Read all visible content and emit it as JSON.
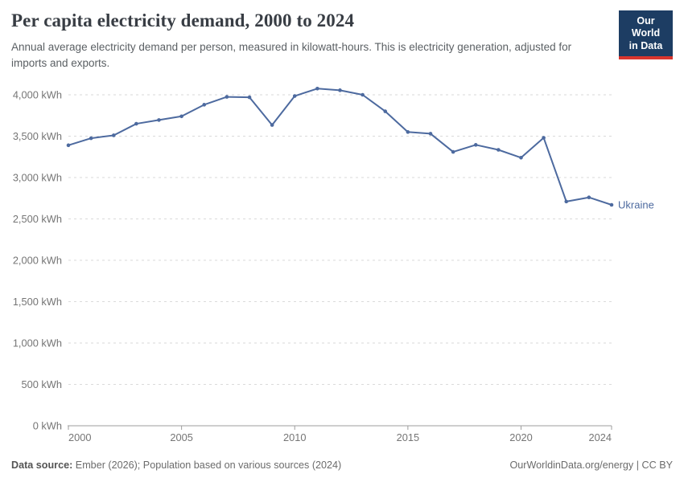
{
  "header": {
    "title": "Per capita electricity demand, 2000 to 2024",
    "subtitle": "Annual average electricity demand per person, measured in kilowatt-hours. This is electricity generation, adjusted for imports and exports.",
    "logo": {
      "line1": "Our World",
      "line2": "in Data"
    }
  },
  "footer": {
    "source_label": "Data source:",
    "source_text": " Ember (2026); Population based on various sources (2024)",
    "credit": "OurWorldinData.org/energy | CC BY"
  },
  "colors": {
    "series": "#4d6a9f",
    "grid": "#dadada",
    "axis": "#9e9e9e",
    "tick_text": "#757575",
    "brand_navy": "#1d3d63",
    "brand_red": "#d8352e"
  },
  "chart_data": {
    "type": "line",
    "title": "Per capita electricity demand, 2000 to 2024",
    "xlabel": "",
    "ylabel": "kWh",
    "grid": true,
    "legend_position": "end-of-line-label",
    "x": [
      2000,
      2001,
      2002,
      2003,
      2004,
      2005,
      2006,
      2007,
      2008,
      2009,
      2010,
      2011,
      2012,
      2013,
      2014,
      2015,
      2016,
      2017,
      2018,
      2019,
      2020,
      2021,
      2022,
      2023,
      2024
    ],
    "series": [
      {
        "name": "Ukraine",
        "values": [
          3390,
          3475,
          3510,
          3650,
          3695,
          3740,
          3880,
          3975,
          3970,
          3635,
          3985,
          4075,
          4055,
          4000,
          3800,
          3550,
          3530,
          3310,
          3395,
          3335,
          3240,
          3480,
          2710,
          2760,
          2670
        ]
      }
    ],
    "x_ticks": [
      2000,
      2005,
      2010,
      2015,
      2020,
      2024
    ],
    "y_ticks": [
      {
        "value": 0,
        "label": "0 kWh"
      },
      {
        "value": 500,
        "label": "500 kWh"
      },
      {
        "value": 1000,
        "label": "1,000 kWh"
      },
      {
        "value": 1500,
        "label": "1,500 kWh"
      },
      {
        "value": 2000,
        "label": "2,000 kWh"
      },
      {
        "value": 2500,
        "label": "2,500 kWh"
      },
      {
        "value": 3000,
        "label": "3,000 kWh"
      },
      {
        "value": 3500,
        "label": "3,500 kWh"
      },
      {
        "value": 4000,
        "label": "4,000 kWh"
      }
    ],
    "xlim": [
      2000,
      2024
    ],
    "ylim": [
      0,
      4150
    ]
  }
}
